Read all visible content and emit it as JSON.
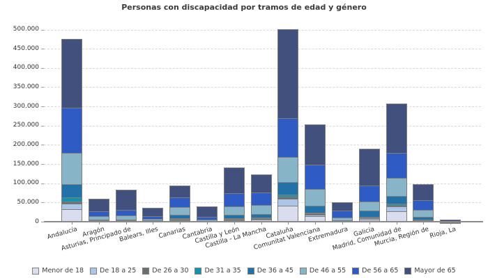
{
  "title": "Personas con discapacidad por tramos de edad y género",
  "chart_data": {
    "type": "bar",
    "stacked": true,
    "title": "Personas con discapacidad por tramos de edad y género",
    "xlabel": "",
    "ylabel": "",
    "ylim": [
      0,
      500000
    ],
    "ytick_step": 50000,
    "ytick_labels": [
      "0",
      "50.000",
      "100.000",
      "150.000",
      "200.000",
      "250.000",
      "300.000",
      "350.000",
      "400.000",
      "450.000",
      "500.000"
    ],
    "grid": "horizontal-dashed",
    "legend_position": "bottom",
    "categories": [
      "Andalucía",
      "Aragón",
      "Asturias, Principado de",
      "Balears, Illes",
      "Canarias",
      "Cantabria",
      "Castilla y León",
      "Castilla - La Mancha",
      "Cataluña",
      "Comunitat Valenciana",
      "Extremadura",
      "Galicia",
      "Madrid, Comunidad de",
      "Murcia, Región de",
      "Rioja, La"
    ],
    "series": [
      {
        "name": "Menor de 18",
        "color": "#d9ddee",
        "values": [
          32000,
          2500,
          2500,
          2000,
          4500,
          2000,
          4500,
          5500,
          42000,
          14500,
          2000,
          6000,
          27000,
          4000,
          1000
        ]
      },
      {
        "name": "De 18 a 25",
        "color": "#adc5e7",
        "values": [
          17000,
          2000,
          2000,
          1500,
          3500,
          1500,
          3000,
          3500,
          20000,
          5500,
          1500,
          4500,
          14500,
          2500,
          700
        ]
      },
      {
        "name": "De 26 a 30",
        "color": "#687074",
        "values": [
          6500,
          2000,
          2000,
          1500,
          3000,
          1200,
          3500,
          3500,
          7000,
          5000,
          1500,
          4000,
          5500,
          2000,
          600
        ]
      },
      {
        "name": "De 31 a 35",
        "color": "#1792ad",
        "values": [
          14000,
          1800,
          2000,
          1500,
          3500,
          1500,
          4000,
          3500,
          7000,
          4000,
          1500,
          3500,
          5500,
          2000,
          700
        ]
      },
      {
        "name": "De 36 a 45",
        "color": "#2371a9",
        "values": [
          36000,
          4500,
          4000,
          3500,
          11000,
          3000,
          10000,
          12000,
          35000,
          20000,
          4000,
          18000,
          22000,
          9000,
          1500
        ]
      },
      {
        "name": "De 46 a 55",
        "color": "#87b4c7",
        "values": [
          82000,
          11000,
          12500,
          5500,
          22000,
          5800,
          23500,
          25000,
          67000,
          45000,
          9000,
          25000,
          49000,
          20000,
          2500
        ]
      },
      {
        "name": "De 56 a 65",
        "color": "#2f5bc5",
        "values": [
          120000,
          14500,
          16000,
          9000,
          27000,
          9000,
          36000,
          34500,
          103000,
          65000,
          20000,
          44000,
          67000,
          27000,
          4000
        ]
      },
      {
        "name": "Mayor de 65",
        "color": "#42507e",
        "values": [
          180000,
          34500,
          54000,
          23500,
          33000,
          29000,
          70000,
          48500,
          232000,
          107000,
          23500,
          98000,
          129000,
          43500,
          6500
        ]
      }
    ]
  },
  "colors": {
    "background": "#ffffff",
    "gridline": "#d8d8d8",
    "axis": "#8a8a8a",
    "bar_border": "#7e7e7e",
    "title_text": "#3a3a3a"
  }
}
